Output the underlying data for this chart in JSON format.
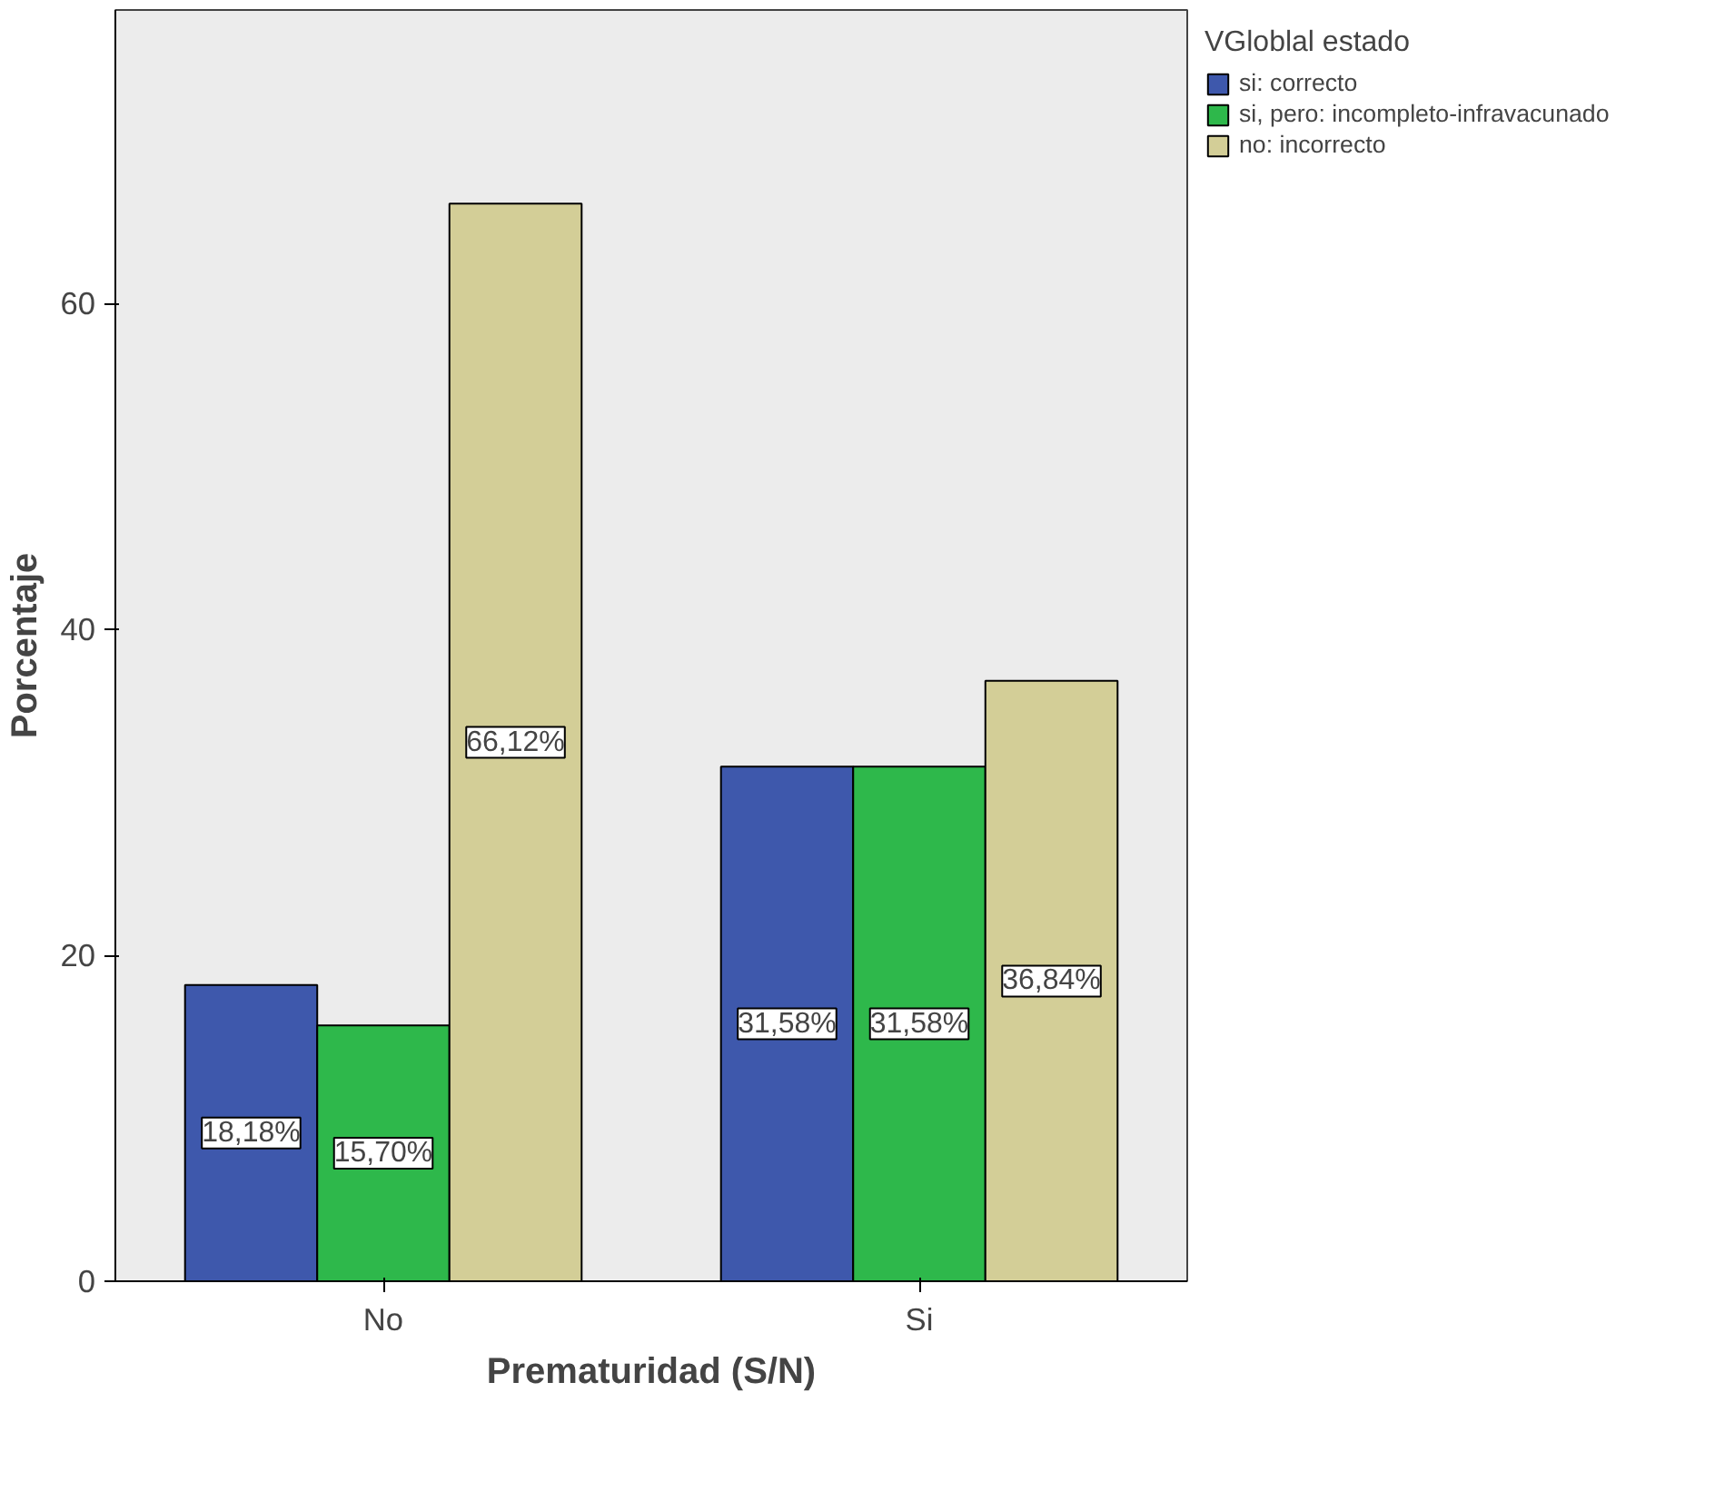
{
  "chart_data": {
    "type": "bar",
    "xlabel": "Prematuridad (S/N)",
    "ylabel": "Porcentaje",
    "legend_title": "VGloblal estado",
    "categories": [
      "No",
      "Si"
    ],
    "ylim": [
      0,
      78
    ],
    "yticks": [
      0,
      20,
      40,
      60
    ],
    "grid": false,
    "legend": "right",
    "series": [
      {
        "name": "si: correcto",
        "color": "#3e58ac",
        "values": [
          18.18,
          31.58
        ],
        "value_labels": [
          "18,18%",
          "31,58%"
        ]
      },
      {
        "name": "si, pero: incompleto-infravacunado",
        "color": "#2eb84b",
        "values": [
          15.7,
          31.58
        ],
        "value_labels": [
          "15,70%",
          "31,58%"
        ]
      },
      {
        "name": "no: incorrecto",
        "color": "#d3ce97",
        "values": [
          66.12,
          36.84
        ],
        "value_labels": [
          "66,12%",
          "36,84%"
        ]
      }
    ]
  }
}
